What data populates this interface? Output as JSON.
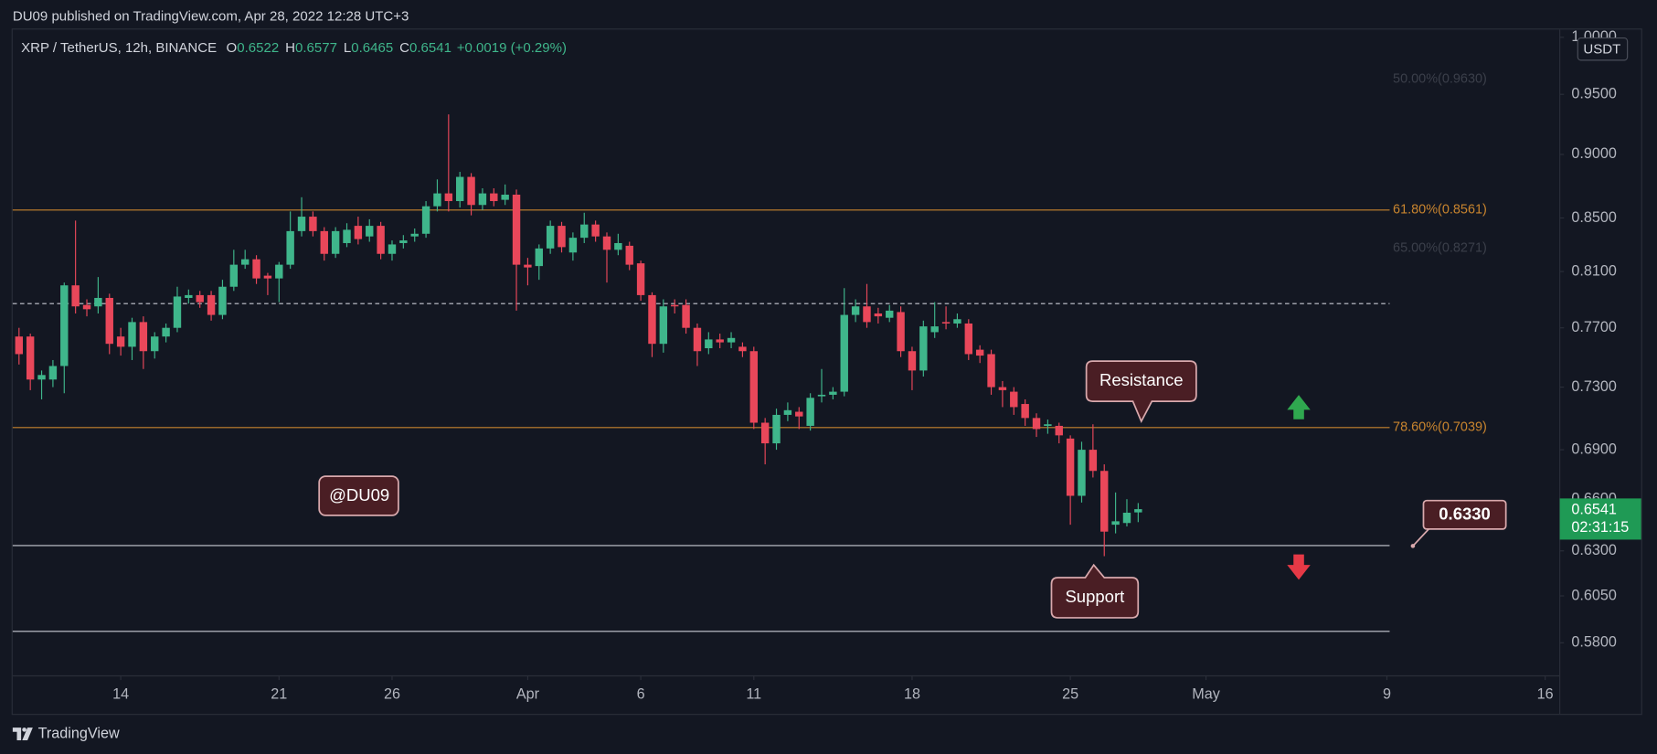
{
  "chart_data": {
    "type": "candlestick",
    "published": "DU09 published on TradingView.com, Apr 28, 2022 12:28 UTC+3",
    "symbol": "XRP / TetherUS, 12h, BINANCE",
    "ohlc_fields": [
      "O",
      "H",
      "L",
      "C"
    ],
    "change": "+0.0019 (+0.29%)",
    "currency": "USDT",
    "countdown": "02:31:15",
    "brand": "TradingView",
    "annotations": {
      "resistance": "Resistance",
      "support": "Support",
      "watermark": "@DU09"
    },
    "up_color": "#3fb68b",
    "down_color": "#e9475a",
    "log_scale": true,
    "grid": false,
    "open": [
      0.764,
      0.764,
      0.735,
      0.735,
      0.744,
      0.8,
      0.786,
      0.785,
      0.791,
      0.764,
      0.757,
      0.774,
      0.754,
      0.764,
      0.77,
      0.791,
      0.793,
      0.793,
      0.779,
      0.799,
      0.815,
      0.819,
      0.807,
      0.805,
      0.815,
      0.84,
      0.851,
      0.84,
      0.823,
      0.831,
      0.844,
      0.836,
      0.844,
      0.823,
      0.831,
      0.836,
      0.838,
      0.859,
      0.869,
      0.863,
      0.882,
      0.86,
      0.869,
      0.864,
      0.868,
      0.815,
      0.814,
      0.827,
      0.844,
      0.824,
      0.835,
      0.845,
      0.836,
      0.826,
      0.829,
      0.816,
      0.793,
      0.759,
      0.786,
      0.786,
      0.77,
      0.756,
      0.762,
      0.76,
      0.757,
      0.754,
      0.707,
      0.694,
      0.712,
      0.714,
      0.705,
      0.724,
      0.725,
      0.727,
      0.779,
      0.785,
      0.78,
      0.777,
      0.781,
      0.754,
      0.741,
      0.767,
      0.774,
      0.773,
      0.773,
      0.755,
      0.752,
      0.73,
      0.727,
      0.719,
      0.71,
      0.705,
      0.705,
      0.697,
      0.662,
      0.69,
      0.677,
      0.645,
      0.646,
      0.6522
    ],
    "high": [
      0.77,
      0.766,
      0.741,
      0.748,
      0.802,
      0.848,
      0.79,
      0.806,
      0.794,
      0.77,
      0.777,
      0.778,
      0.767,
      0.773,
      0.799,
      0.797,
      0.796,
      0.796,
      0.804,
      0.826,
      0.826,
      0.822,
      0.809,
      0.817,
      0.855,
      0.866,
      0.855,
      0.843,
      0.843,
      0.846,
      0.851,
      0.849,
      0.847,
      0.833,
      0.837,
      0.842,
      0.863,
      0.88,
      0.933,
      0.886,
      0.885,
      0.873,
      0.873,
      0.876,
      0.872,
      0.82,
      0.83,
      0.848,
      0.847,
      0.839,
      0.854,
      0.848,
      0.839,
      0.838,
      0.832,
      0.818,
      0.795,
      0.79,
      0.79,
      0.79,
      0.773,
      0.767,
      0.766,
      0.767,
      0.76,
      0.757,
      0.71,
      0.716,
      0.72,
      0.717,
      0.726,
      0.742,
      0.73,
      0.798,
      0.79,
      0.801,
      0.784,
      0.786,
      0.785,
      0.757,
      0.775,
      0.788,
      0.785,
      0.78,
      0.776,
      0.758,
      0.755,
      0.734,
      0.73,
      0.722,
      0.713,
      0.709,
      0.707,
      0.699,
      0.695,
      0.706,
      0.681,
      0.664,
      0.66,
      0.6577
    ],
    "low": [
      0.745,
      0.728,
      0.722,
      0.73,
      0.726,
      0.78,
      0.778,
      0.78,
      0.752,
      0.751,
      0.748,
      0.742,
      0.749,
      0.76,
      0.767,
      0.787,
      0.784,
      0.775,
      0.776,
      0.796,
      0.812,
      0.801,
      0.793,
      0.788,
      0.812,
      0.836,
      0.836,
      0.818,
      0.82,
      0.828,
      0.83,
      0.832,
      0.819,
      0.818,
      0.827,
      0.832,
      0.835,
      0.855,
      0.855,
      0.858,
      0.852,
      0.856,
      0.859,
      0.86,
      0.782,
      0.8,
      0.804,
      0.823,
      0.824,
      0.818,
      0.831,
      0.832,
      0.802,
      0.822,
      0.811,
      0.789,
      0.75,
      0.753,
      0.78,
      0.766,
      0.744,
      0.752,
      0.756,
      0.756,
      0.75,
      0.703,
      0.681,
      0.69,
      0.708,
      0.703,
      0.702,
      0.72,
      0.722,
      0.724,
      0.774,
      0.77,
      0.773,
      0.774,
      0.75,
      0.728,
      0.737,
      0.763,
      0.769,
      0.77,
      0.748,
      0.746,
      0.725,
      0.717,
      0.712,
      0.705,
      0.698,
      0.7,
      0.694,
      0.645,
      0.658,
      0.673,
      0.627,
      0.64,
      0.644,
      0.6465
    ],
    "close": [
      0.752,
      0.735,
      0.738,
      0.744,
      0.8,
      0.785,
      0.783,
      0.791,
      0.759,
      0.757,
      0.774,
      0.754,
      0.764,
      0.77,
      0.792,
      0.793,
      0.788,
      0.779,
      0.799,
      0.815,
      0.819,
      0.805,
      0.805,
      0.815,
      0.84,
      0.851,
      0.84,
      0.823,
      0.84,
      0.841,
      0.834,
      0.844,
      0.823,
      0.83,
      0.833,
      0.838,
      0.859,
      0.869,
      0.863,
      0.882,
      0.86,
      0.869,
      0.863,
      0.868,
      0.815,
      0.813,
      0.827,
      0.844,
      0.828,
      0.835,
      0.845,
      0.836,
      0.826,
      0.831,
      0.815,
      0.793,
      0.759,
      0.785,
      0.785,
      0.77,
      0.754,
      0.762,
      0.76,
      0.763,
      0.754,
      0.707,
      0.694,
      0.712,
      0.715,
      0.711,
      0.723,
      0.725,
      0.727,
      0.779,
      0.785,
      0.774,
      0.778,
      0.782,
      0.754,
      0.741,
      0.771,
      0.771,
      0.773,
      0.776,
      0.752,
      0.751,
      0.73,
      0.728,
      0.717,
      0.71,
      0.703,
      0.706,
      0.699,
      0.662,
      0.69,
      0.677,
      0.641,
      0.647,
      0.652,
      0.6541
    ],
    "xlim": [
      -0.56,
      136.2
    ],
    "xticks": [
      {
        "value": 9,
        "label": "14"
      },
      {
        "value": 23,
        "label": "21"
      },
      {
        "value": 33,
        "label": "26"
      },
      {
        "value": 45,
        "label": "Apr"
      },
      {
        "value": 55,
        "label": "6"
      },
      {
        "value": 65,
        "label": "11"
      },
      {
        "value": 79,
        "label": "18"
      },
      {
        "value": 93,
        "label": "25"
      },
      {
        "value": 105,
        "label": "May"
      },
      {
        "value": 121,
        "label": "9"
      },
      {
        "value": 135,
        "label": "16"
      }
    ],
    "ylim": [
      0.563,
      1.007
    ],
    "yticks": [
      {
        "value": 1.0,
        "label": "1.0000"
      },
      {
        "value": 0.95,
        "label": "0.9500"
      },
      {
        "value": 0.9,
        "label": "0.9000"
      },
      {
        "value": 0.85,
        "label": "0.8500"
      },
      {
        "value": 0.81,
        "label": "0.8100"
      },
      {
        "value": 0.77,
        "label": "0.7700"
      },
      {
        "value": 0.73,
        "label": "0.7300"
      },
      {
        "value": 0.69,
        "label": "0.6900"
      },
      {
        "value": 0.66,
        "label": "0.6600"
      },
      {
        "value": 0.63,
        "label": "0.6300"
      },
      {
        "value": 0.605,
        "label": "0.6050"
      },
      {
        "value": 0.58,
        "label": "0.5800"
      }
    ],
    "fib_levels": [
      {
        "value": 0.963,
        "label": "50.00%(0.9630)",
        "color": "#3b3f4a",
        "line": false
      },
      {
        "value": 0.8561,
        "label": "61.80%(0.8561)",
        "color": "#c8842e",
        "line": true
      },
      {
        "value": 0.8271,
        "label": "65.00%(0.8271)",
        "color": "#3b3f4a",
        "line": false
      },
      {
        "value": 0.7039,
        "label": "78.60%(0.7039)",
        "color": "#c8842e",
        "line": true
      }
    ],
    "hlines": [
      {
        "value": 0.787,
        "style": "dashed"
      },
      {
        "value": 0.633,
        "style": "solid",
        "label": "0.6330"
      },
      {
        "value": 0.586,
        "style": "solid"
      }
    ]
  }
}
